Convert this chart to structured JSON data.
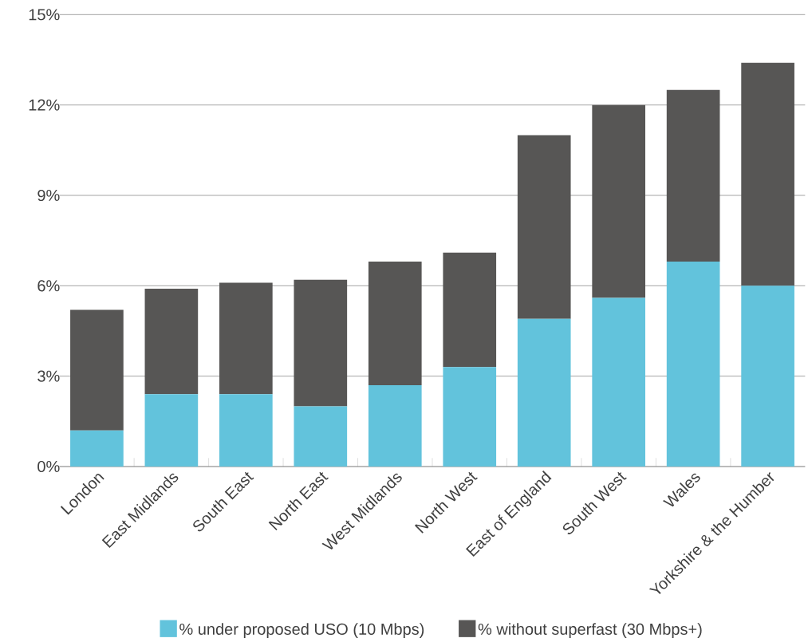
{
  "chart_data": {
    "type": "bar",
    "stacked": true,
    "categories": [
      "London",
      "East Midlands",
      "South East",
      "North East",
      "West Midlands",
      "North West",
      "East of England",
      "South West",
      "Wales",
      "Yorkshire & the Humber"
    ],
    "series": [
      {
        "name": "% under proposed USO (10 Mbps)",
        "color": "#62c3dc",
        "values": [
          1.2,
          2.4,
          2.4,
          2.0,
          2.7,
          3.3,
          4.9,
          5.6,
          6.8,
          6.0
        ]
      },
      {
        "name": "% without superfast (30 Mbps+)",
        "color": "#575655",
        "values": [
          4.0,
          3.5,
          3.7,
          4.2,
          4.1,
          3.8,
          6.1,
          6.4,
          5.7,
          7.4
        ]
      }
    ],
    "ylim": [
      0,
      15
    ],
    "yticks": [
      {
        "value": 0,
        "label": "0%"
      },
      {
        "value": 3,
        "label": "3%"
      },
      {
        "value": 6,
        "label": "6%"
      },
      {
        "value": 9,
        "label": "9%"
      },
      {
        "value": 12,
        "label": "12%"
      },
      {
        "value": 15,
        "label": "15%"
      }
    ],
    "grid": "y",
    "legend": "bottom"
  }
}
